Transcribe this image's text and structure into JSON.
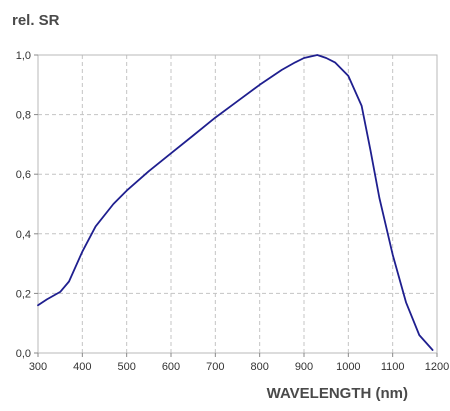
{
  "chart_data": {
    "type": "line",
    "ylabel": "rel. SR",
    "xlabel": "WAVELENGTH (nm)",
    "xlim": [
      300,
      1200
    ],
    "ylim": [
      0.0,
      1.0
    ],
    "xticks": [
      "300",
      "400",
      "500",
      "600",
      "700",
      "800",
      "900",
      "1000",
      "1100",
      "1200"
    ],
    "xtick_values": [
      300,
      400,
      500,
      600,
      700,
      800,
      900,
      1000,
      1100,
      1200
    ],
    "yticks": [
      "0,0",
      "0,2",
      "0,4",
      "0,6",
      "0,8",
      "1,0"
    ],
    "ytick_values": [
      0.0,
      0.2,
      0.4,
      0.6,
      0.8,
      1.0
    ],
    "grid": true,
    "series": [
      {
        "color": "#1f1f8f",
        "x": [
          300,
          320,
          350,
          370,
          400,
          430,
          470,
          500,
          550,
          600,
          650,
          700,
          750,
          800,
          850,
          880,
          900,
          930,
          950,
          970,
          1000,
          1030,
          1050,
          1070,
          1100,
          1130,
          1160,
          1190
        ],
        "y": [
          0.16,
          0.18,
          0.205,
          0.24,
          0.34,
          0.425,
          0.5,
          0.545,
          0.61,
          0.67,
          0.73,
          0.79,
          0.845,
          0.9,
          0.95,
          0.975,
          0.99,
          1.0,
          0.99,
          0.975,
          0.93,
          0.83,
          0.68,
          0.52,
          0.33,
          0.17,
          0.06,
          0.01
        ]
      }
    ]
  }
}
